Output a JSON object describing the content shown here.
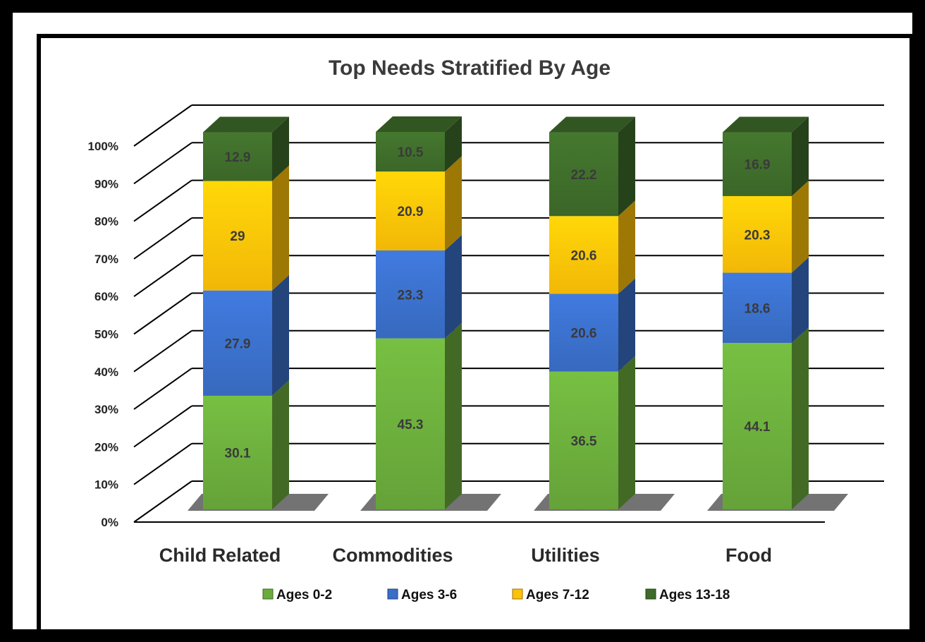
{
  "chart_data": {
    "type": "bar",
    "stacked": true,
    "percent": true,
    "title": "Top Needs Stratified By Age",
    "xlabel": "",
    "ylabel": "",
    "ylim": [
      0,
      100
    ],
    "yticks": [
      "0%",
      "10%",
      "20%",
      "30%",
      "40%",
      "50%",
      "60%",
      "70%",
      "80%",
      "90%",
      "100%"
    ],
    "categories": [
      "Child Related",
      "Commodities",
      "Utilities",
      "Food"
    ],
    "series": [
      {
        "name": "Ages 0-2",
        "values": [
          30.1,
          45.3,
          36.5,
          44.1
        ],
        "color": "#6aab3c",
        "labels": [
          "30.1",
          "45.3",
          "36.5",
          "44.1"
        ]
      },
      {
        "name": "Ages 3-6",
        "values": [
          27.9,
          23.3,
          20.6,
          18.6
        ],
        "color": "#3a6ec8",
        "labels": [
          "27.9",
          "23.3",
          "20.6",
          "18.6"
        ]
      },
      {
        "name": "Ages 7-12",
        "values": [
          29,
          20.9,
          20.6,
          20.3
        ],
        "color": "#ffc107",
        "labels": [
          "29",
          "20.9",
          "20.6",
          "20.3"
        ]
      },
      {
        "name": "Ages 13-18",
        "values": [
          12.9,
          10.5,
          22.2,
          16.9
        ],
        "color": "#3e6b2a",
        "labels": [
          "12.9",
          "10.5",
          "22.2",
          "16.9"
        ]
      }
    ],
    "legend": "bottom",
    "grid": true
  }
}
